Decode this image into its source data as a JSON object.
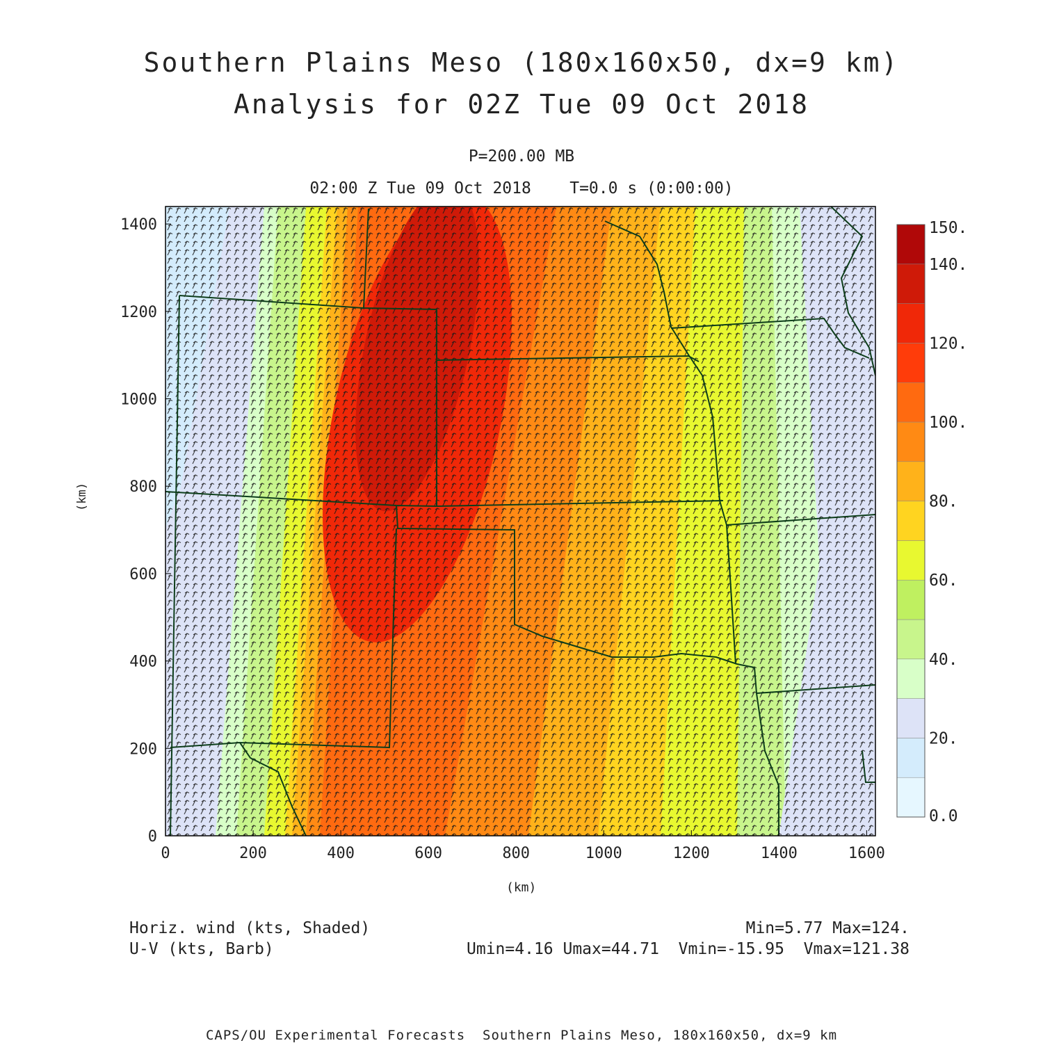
{
  "header": {
    "title_line1": "Southern Plains Meso (180x160x50, dx=9 km)",
    "title_line2": "Analysis for 02Z Tue 09 Oct 2018",
    "level": "P=200.00 MB",
    "valid_time": "02:00 Z Tue 09 Oct 2018    T=0.0 s (0:00:00)"
  },
  "axes": {
    "x_label": "(km)",
    "y_label": "(km)",
    "x_ticks": [
      "0",
      "200",
      "400",
      "600",
      "800",
      "1000",
      "1200",
      "1400",
      "1600"
    ],
    "y_ticks": [
      "0",
      "200",
      "400",
      "600",
      "800",
      "1000",
      "1200",
      "1400"
    ]
  },
  "colorbar": {
    "labels": [
      "0.0",
      "20.",
      "40.",
      "60.",
      "80.",
      "100.",
      "120.",
      "140.",
      "150."
    ],
    "colors": [
      "#e6f7ff",
      "#d4ecfc",
      "#dde3f7",
      "#d8ffc8",
      "#c8f58c",
      "#bff060",
      "#e8f830",
      "#ffd420",
      "#ffb21a",
      "#ff8a14",
      "#ff6a10",
      "#ff3c0a",
      "#f02808",
      "#cf1a08",
      "#b00808"
    ]
  },
  "legend": {
    "field1": "Horiz. wind (kts, Shaded)",
    "field2": "U-V (kts, Barb)",
    "stats1": "Min=5.77 Max=124.",
    "stats2": "Umin=4.16 Umax=44.71  Vmin=-15.95  Vmax=121.38"
  },
  "footer": "CAPS/OU Experimental Forecasts  Southern Plains Meso, 180x160x50, dx=9 km",
  "map": {
    "extent_km": {
      "x": [
        0,
        1620
      ],
      "y": [
        0,
        1440
      ]
    },
    "wind_jet": {
      "axis_x_km_at_y0": 430,
      "axis_x_km_at_y1440": 680,
      "max_kts": 124,
      "min_kts": 5.77
    }
  }
}
